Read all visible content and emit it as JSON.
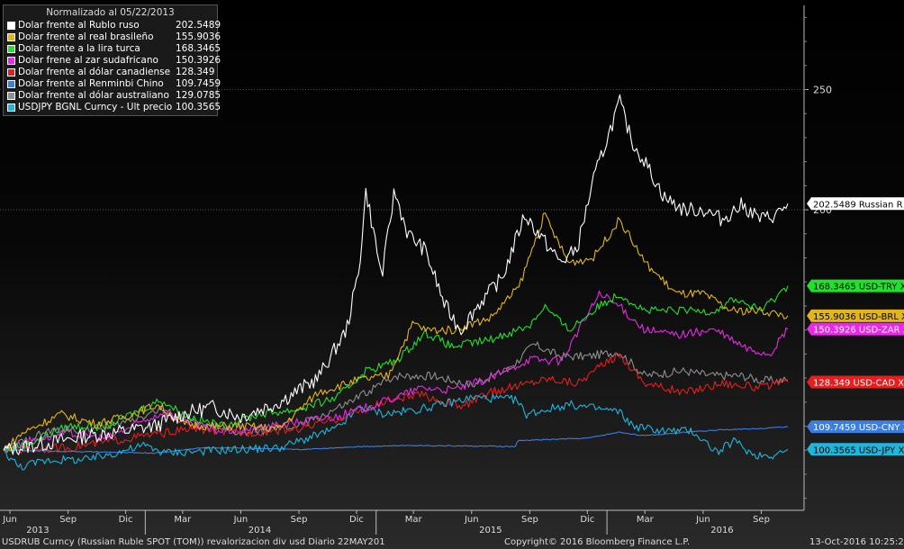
{
  "chart_data": {
    "type": "line",
    "title": "Normalizado al 05/22/2013",
    "xlabel": "",
    "ylabel": "",
    "x_range": [
      "2013-05-22",
      "2016-10-13"
    ],
    "ylim": [
      75,
      285
    ],
    "y_ticks": [
      250,
      200
    ],
    "x_month_ticks": [
      {
        "date": "2013-06-01",
        "label": "Jun"
      },
      {
        "date": "2013-09-01",
        "label": "Sep"
      },
      {
        "date": "2013-12-01",
        "label": "Dic"
      },
      {
        "date": "2014-03-01",
        "label": "Mar"
      },
      {
        "date": "2014-06-01",
        "label": "Jun"
      },
      {
        "date": "2014-09-01",
        "label": "Sep"
      },
      {
        "date": "2014-12-01",
        "label": "Dic"
      },
      {
        "date": "2015-03-01",
        "label": "Mar"
      },
      {
        "date": "2015-06-01",
        "label": "Jun"
      },
      {
        "date": "2015-09-01",
        "label": "Sep"
      },
      {
        "date": "2015-12-01",
        "label": "Dic"
      },
      {
        "date": "2016-03-01",
        "label": "Mar"
      },
      {
        "date": "2016-06-01",
        "label": "Jun"
      },
      {
        "date": "2016-09-01",
        "label": "Sep"
      }
    ],
    "x_year_ticks": [
      {
        "date": "2013-07-15",
        "label": "2013"
      },
      {
        "date": "2014-07-01",
        "label": "2014"
      },
      {
        "date": "2015-07-01",
        "label": "2015"
      },
      {
        "date": "2016-07-01",
        "label": "2016"
      }
    ],
    "series": [
      {
        "name": "Dolar frente al Rublo ruso",
        "last": "202.5489",
        "tag": "202.5489 Russian R",
        "color": "#ffffff",
        "x": [
          "2013-05-22",
          "2013-08-01",
          "2013-10-01",
          "2013-12-01",
          "2014-01-15",
          "2014-03-01",
          "2014-04-15",
          "2014-06-01",
          "2014-08-01",
          "2014-10-01",
          "2014-11-15",
          "2014-12-05",
          "2014-12-16",
          "2015-01-10",
          "2015-01-30",
          "2015-02-20",
          "2015-03-20",
          "2015-04-20",
          "2015-05-15",
          "2015-06-10",
          "2015-07-20",
          "2015-08-24",
          "2015-09-15",
          "2015-10-20",
          "2015-11-15",
          "2015-12-10",
          "2016-01-21",
          "2016-02-10",
          "2016-03-01",
          "2016-04-01",
          "2016-05-01",
          "2016-06-01",
          "2016-07-01",
          "2016-08-01",
          "2016-09-01",
          "2016-09-25",
          "2016-10-13"
        ],
        "values": [
          100,
          103,
          106,
          108,
          110,
          115,
          118,
          114,
          120,
          130,
          150,
          175,
          208,
          172,
          208,
          190,
          183,
          160,
          150,
          160,
          172,
          198,
          190,
          178,
          184,
          212,
          245,
          228,
          220,
          205,
          200,
          200,
          196,
          202,
          196,
          198,
          202.5489
        ]
      },
      {
        "name": "Dolar frente al real brasileño",
        "last": "155.9036",
        "tag": "155.9036 USD-BRL X",
        "color": "#e3b51b",
        "x": [
          "2013-05-22",
          "2013-06-20",
          "2013-08-20",
          "2013-10-15",
          "2013-12-01",
          "2014-01-20",
          "2014-03-01",
          "2014-04-15",
          "2014-06-01",
          "2014-08-01",
          "2014-10-01",
          "2014-12-01",
          "2015-01-20",
          "2015-03-01",
          "2015-03-20",
          "2015-05-01",
          "2015-07-01",
          "2015-08-15",
          "2015-09-24",
          "2015-11-01",
          "2015-12-10",
          "2016-01-21",
          "2016-03-01",
          "2016-04-20",
          "2016-06-01",
          "2016-07-15",
          "2016-09-01",
          "2016-10-13"
        ],
        "values": [
          100,
          107,
          115,
          111,
          114,
          119,
          111,
          110,
          110,
          109,
          124,
          129,
          131,
          153,
          150,
          150,
          155,
          168,
          198,
          178,
          180,
          196,
          178,
          165,
          165,
          158,
          158,
          155.9036
        ]
      },
      {
        "name": "Dolar frente a la lira turca",
        "last": "168.3465",
        "tag": "168.3465 USD-TRY X",
        "color": "#22e02c",
        "x": [
          "2013-05-22",
          "2013-07-01",
          "2013-09-01",
          "2013-11-01",
          "2014-01-26",
          "2014-03-01",
          "2014-05-01",
          "2014-07-01",
          "2014-09-01",
          "2014-11-01",
          "2014-12-15",
          "2015-02-01",
          "2015-03-20",
          "2015-05-01",
          "2015-07-01",
          "2015-09-01",
          "2015-09-24",
          "2015-11-01",
          "2015-12-20",
          "2016-01-21",
          "2016-03-01",
          "2016-05-01",
          "2016-06-20",
          "2016-07-20",
          "2016-09-01",
          "2016-10-13"
        ],
        "values": [
          100,
          103,
          110,
          110,
          121,
          115,
          110,
          115,
          117,
          122,
          133,
          137,
          149,
          143,
          146,
          152,
          160,
          150,
          160,
          165,
          158,
          158,
          158,
          163,
          158,
          168.3465
        ]
      },
      {
        "name": "Dolar frene al zar sudafricano",
        "last": "150.3926",
        "tag": "150.3926 USD-ZAR X",
        "color": "#ea28e8",
        "x": [
          "2013-05-22",
          "2013-07-01",
          "2013-09-01",
          "2013-11-01",
          "2014-01-30",
          "2014-03-15",
          "2014-05-01",
          "2014-07-01",
          "2014-09-01",
          "2014-11-01",
          "2015-01-01",
          "2015-03-15",
          "2015-05-01",
          "2015-07-01",
          "2015-09-01",
          "2015-10-20",
          "2015-12-20",
          "2016-01-20",
          "2016-03-01",
          "2016-04-20",
          "2016-06-20",
          "2016-08-10",
          "2016-09-15",
          "2016-10-13"
        ],
        "values": [
          100,
          104,
          107,
          105,
          116,
          110,
          108,
          109,
          112,
          114,
          119,
          126,
          125,
          130,
          138,
          137,
          165,
          160,
          150,
          148,
          150,
          142,
          140,
          150.3926
        ]
      },
      {
        "name": "Dolar frente al dólar canadiense",
        "last": "128.349",
        "tag": "128.349  USD-CAD X",
        "color": "#e61e1e",
        "x": [
          "2013-05-22",
          "2013-09-01",
          "2014-01-01",
          "2014-03-20",
          "2014-06-01",
          "2014-09-01",
          "2014-11-01",
          "2015-01-25",
          "2015-03-15",
          "2015-05-15",
          "2015-07-01",
          "2015-09-30",
          "2015-11-15",
          "2016-01-20",
          "2016-03-01",
          "2016-05-01",
          "2016-07-01",
          "2016-09-01",
          "2016-10-13"
        ],
        "values": [
          100,
          101,
          106,
          109,
          107,
          109,
          113,
          121,
          123,
          118,
          124,
          130,
          128,
          140,
          128,
          124,
          128,
          126,
          128.349
        ]
      },
      {
        "name": "Dolar frente al Renminbi Chino",
        "last": "109.7459",
        "tag": "109.7459 USD-CNY X",
        "color": "#3d7de0",
        "x": [
          "2013-05-22",
          "2013-09-01",
          "2014-01-15",
          "2014-04-01",
          "2014-06-01",
          "2014-09-01",
          "2014-12-01",
          "2015-03-01",
          "2015-08-10",
          "2015-08-13",
          "2015-12-01",
          "2016-01-20",
          "2016-03-01",
          "2016-05-01",
          "2016-07-01",
          "2016-09-01",
          "2016-10-13"
        ],
        "values": [
          100,
          99.5,
          98.8,
          101,
          101,
          100.2,
          101.5,
          102,
          101.5,
          104,
          105,
          107.5,
          106,
          107.5,
          108.5,
          109,
          109.7459
        ]
      },
      {
        "name": "Dolar frente al dólar australiano",
        "last": "129.0785",
        "tag": "129.0785",
        "color": "#8f8f8f",
        "x": [
          "2013-05-22",
          "2013-08-01",
          "2013-11-01",
          "2014-01-25",
          "2014-04-01",
          "2014-06-01",
          "2014-09-01",
          "2014-11-15",
          "2015-01-30",
          "2015-04-01",
          "2015-06-01",
          "2015-08-01",
          "2015-09-07",
          "2015-10-20",
          "2015-12-01",
          "2016-01-20",
          "2016-03-01",
          "2016-05-01",
          "2016-06-15",
          "2016-08-01",
          "2016-09-01",
          "2016-10-13"
        ],
        "values": [
          100,
          108,
          109,
          117,
          110,
          107,
          110,
          119,
          131,
          131,
          127,
          134,
          144,
          139,
          139,
          141,
          131,
          133,
          131,
          131,
          129,
          129.0785
        ]
      },
      {
        "name": "USDJPY BGNL Curncy - Últ precio",
        "last": "100.3565",
        "tag": "100.3565 USD-JPY X",
        "color": "#1fb6dc",
        "x": [
          "2013-05-22",
          "2013-06-15",
          "2013-08-01",
          "2013-10-01",
          "2013-12-31",
          "2014-02-01",
          "2014-05-01",
          "2014-08-01",
          "2014-10-31",
          "2014-12-07",
          "2015-01-15",
          "2015-03-10",
          "2015-06-05",
          "2015-08-10",
          "2015-08-26",
          "2015-11-01",
          "2016-01-20",
          "2016-02-11",
          "2016-04-01",
          "2016-05-15",
          "2016-06-24",
          "2016-07-20",
          "2016-08-20",
          "2016-09-20",
          "2016-10-13"
        ],
        "values": [
          100,
          93,
          96,
          96,
          102,
          99,
          100,
          101,
          109,
          118,
          115,
          117,
          122,
          121,
          115,
          119,
          116,
          110,
          108,
          108,
          99,
          104,
          98,
          98,
          100.3565
        ]
      }
    ]
  },
  "footer": {
    "left": "USDRUB Curncy (Russian Ruble SPOT (TOM)) revalorizacion div usd  Diario 22MAY201",
    "center": "Copyright© 2016 Bloomberg Finance L.P.",
    "right": "13-Oct-2016 10:25:28"
  }
}
